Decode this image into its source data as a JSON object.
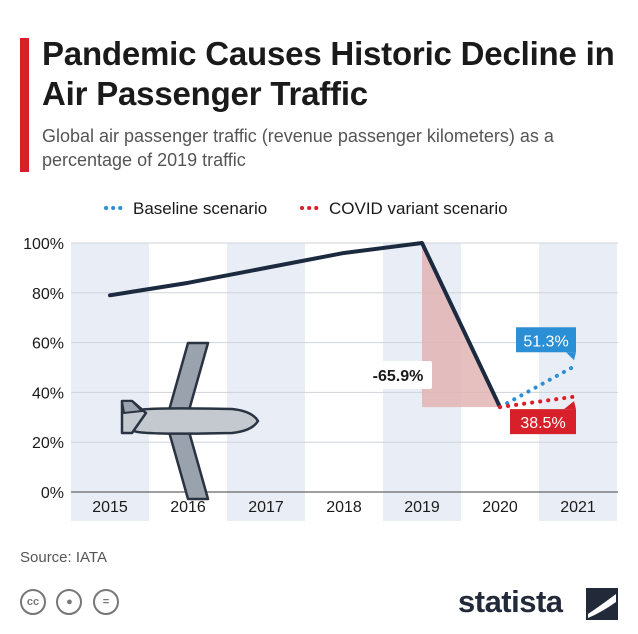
{
  "header": {
    "title": "Pandemic Causes Historic Decline in Air Passenger Traffic",
    "subtitle": "Global air passenger traffic (revenue passenger kilometers) as a percentage of 2019 traffic"
  },
  "footer": {
    "source": "Source: IATA",
    "brand": "statista",
    "license_icons": [
      "cc-icon",
      "attribution-icon",
      "no-derivatives-icon"
    ]
  },
  "colors": {
    "accent": "#d7202a",
    "main_line": "#1c2a3f",
    "baseline": "#2b8fd6",
    "covid": "#d7202a",
    "decline_area": "#e2b4b4",
    "column_band": "#e9eef6"
  },
  "illustration": {
    "icon": "airplane-icon"
  },
  "chart_data": {
    "type": "line",
    "x": [
      "2015",
      "2016",
      "2017",
      "2018",
      "2019",
      "2020",
      "2021"
    ],
    "ylim": [
      0,
      100
    ],
    "yticks": [
      0,
      20,
      40,
      60,
      80,
      100
    ],
    "ytick_labels": [
      "0%",
      "20%",
      "40%",
      "60%",
      "80%",
      "100%"
    ],
    "grid": true,
    "legend_position": "top",
    "series": [
      {
        "name": "",
        "x": [
          "2015",
          "2016",
          "2017",
          "2018",
          "2019",
          "2020"
        ],
        "values": [
          79,
          84,
          90,
          96,
          100,
          34.1
        ]
      },
      {
        "name": "Baseline scenario",
        "x": [
          "2020",
          "2021"
        ],
        "values": [
          34.1,
          51.3
        ],
        "style": "dotted"
      },
      {
        "name": "COVID variant scenario",
        "x": [
          "2020",
          "2021"
        ],
        "values": [
          34.1,
          38.5
        ],
        "style": "dotted"
      }
    ],
    "annotations": [
      {
        "text": "-65.9%",
        "x": "2019",
        "y": 47
      },
      {
        "text": "51.3%",
        "x": "2021",
        "y": 51.3,
        "series": "Baseline scenario"
      },
      {
        "text": "38.5%",
        "x": "2021",
        "y": 38.5,
        "series": "COVID variant scenario"
      }
    ]
  }
}
